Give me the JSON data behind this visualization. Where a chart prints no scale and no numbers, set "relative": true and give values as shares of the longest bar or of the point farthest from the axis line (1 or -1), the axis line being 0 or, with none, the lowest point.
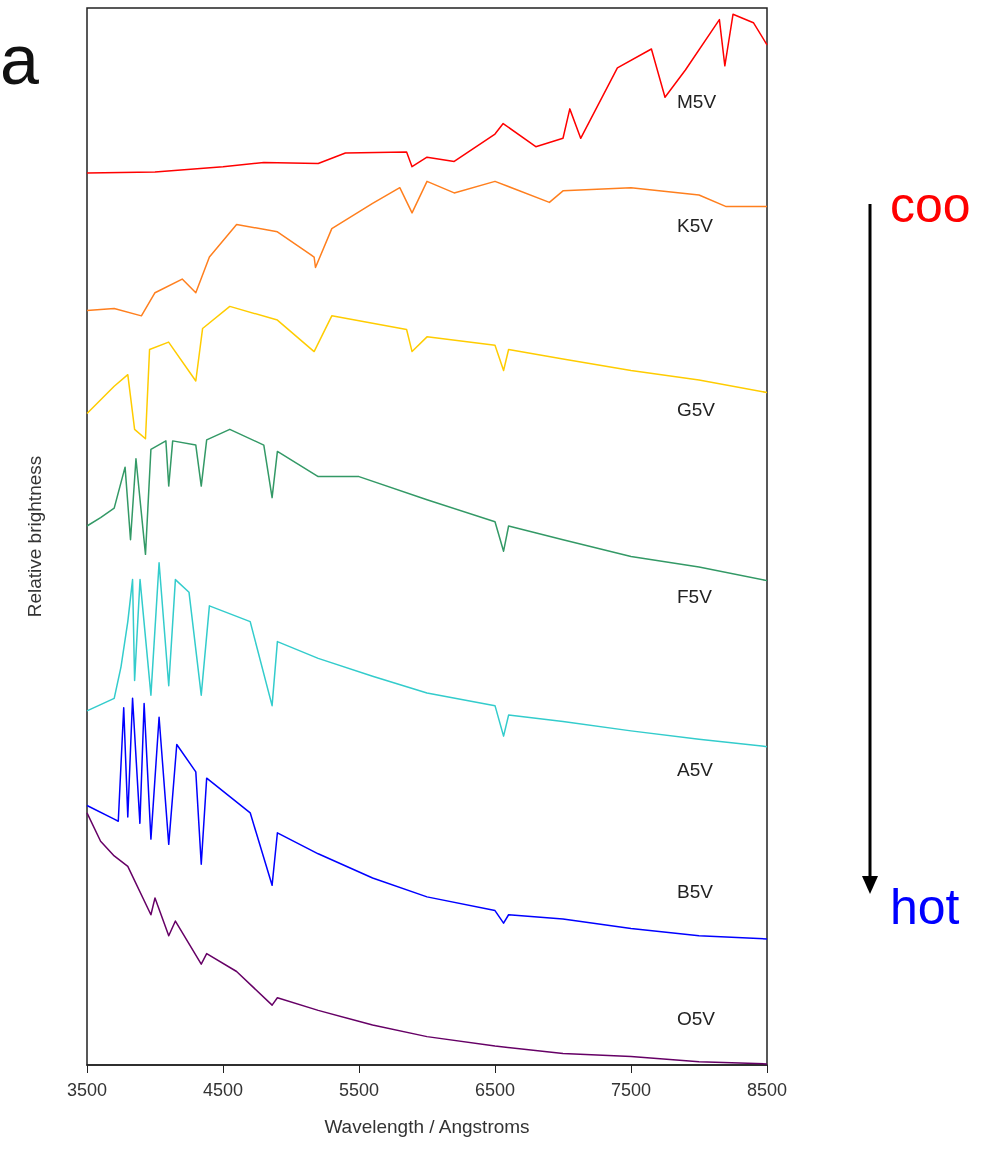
{
  "chart_data": {
    "type": "line",
    "relative": true,
    "xlabel": "Wavelength / Angstroms",
    "ylabel": "Relative brightness",
    "xlim": [
      3500,
      8500
    ],
    "xticks": [
      3500,
      4500,
      5500,
      6500,
      7500,
      8500
    ],
    "grid": false,
    "legend": false,
    "marker": "none",
    "line_style": "solid",
    "annotations": [
      "a",
      "coo",
      "hot"
    ],
    "series": [
      {
        "name": "M5V",
        "color": "#ff0000",
        "x": [
          3500,
          4000,
          4500,
          4800,
          5200,
          5400,
          5850,
          5890,
          6000,
          6200,
          6500,
          6560,
          6800,
          7000,
          7050,
          7130,
          7400,
          7650,
          7750,
          7900,
          8150,
          8190,
          8250,
          8400,
          8500
        ],
        "values": [
          0.849,
          0.85,
          0.855,
          0.859,
          0.858,
          0.868,
          0.869,
          0.855,
          0.864,
          0.86,
          0.886,
          0.896,
          0.874,
          0.882,
          0.91,
          0.882,
          0.949,
          0.967,
          0.921,
          0.947,
          0.995,
          0.951,
          1.0,
          0.992,
          0.971
        ]
      },
      {
        "name": "K5V",
        "color": "#ff7f1e",
        "x": [
          3500,
          3700,
          3900,
          4000,
          4200,
          4300,
          4400,
          4600,
          4900,
          5170,
          5180,
          5300,
          5600,
          5800,
          5890,
          6000,
          6200,
          6500,
          6900,
          7000,
          7500,
          8000,
          8200,
          8500
        ],
        "values": [
          0.718,
          0.72,
          0.713,
          0.735,
          0.748,
          0.735,
          0.769,
          0.8,
          0.793,
          0.769,
          0.759,
          0.796,
          0.82,
          0.835,
          0.811,
          0.841,
          0.83,
          0.841,
          0.821,
          0.832,
          0.835,
          0.828,
          0.817,
          0.817
        ]
      },
      {
        "name": "G5V",
        "color": "#ffcc00",
        "x": [
          3500,
          3700,
          3800,
          3850,
          3930,
          3960,
          4100,
          4300,
          4350,
          4550,
          4900,
          5170,
          5300,
          5850,
          5890,
          6000,
          6500,
          6563,
          6600,
          7000,
          7500,
          8000,
          8500
        ],
        "values": [
          0.62,
          0.646,
          0.657,
          0.605,
          0.596,
          0.681,
          0.688,
          0.651,
          0.701,
          0.722,
          0.709,
          0.679,
          0.713,
          0.7,
          0.679,
          0.693,
          0.685,
          0.661,
          0.681,
          0.672,
          0.661,
          0.652,
          0.64
        ]
      },
      {
        "name": "F5V",
        "color": "#339966",
        "x": [
          3500,
          3600,
          3700,
          3780,
          3820,
          3860,
          3930,
          3970,
          4080,
          4101,
          4130,
          4300,
          4340,
          4380,
          4550,
          4800,
          4861,
          4900,
          5200,
          5500,
          6000,
          6500,
          6563,
          6600,
          7000,
          7500,
          8000,
          8500
        ],
        "values": [
          0.513,
          0.521,
          0.53,
          0.569,
          0.5,
          0.577,
          0.486,
          0.586,
          0.594,
          0.551,
          0.594,
          0.59,
          0.551,
          0.595,
          0.605,
          0.59,
          0.54,
          0.584,
          0.56,
          0.56,
          0.538,
          0.517,
          0.489,
          0.513,
          0.5,
          0.484,
          0.474,
          0.461
        ]
      },
      {
        "name": "A5V",
        "color": "#33cccc",
        "x": [
          3500,
          3700,
          3750,
          3800,
          3835,
          3850,
          3890,
          3970,
          4030,
          4101,
          4150,
          4250,
          4340,
          4400,
          4700,
          4861,
          4900,
          5200,
          5600,
          6000,
          6500,
          6563,
          6600,
          7000,
          7500,
          8000,
          8500
        ],
        "values": [
          0.337,
          0.349,
          0.379,
          0.422,
          0.462,
          0.366,
          0.462,
          0.352,
          0.478,
          0.361,
          0.462,
          0.45,
          0.352,
          0.437,
          0.422,
          0.342,
          0.403,
          0.387,
          0.37,
          0.354,
          0.342,
          0.313,
          0.333,
          0.327,
          0.318,
          0.31,
          0.303
        ]
      },
      {
        "name": "B5V",
        "color": "#0000ff",
        "x": [
          3500,
          3700,
          3730,
          3770,
          3800,
          3835,
          3889,
          3920,
          3970,
          4030,
          4101,
          4160,
          4300,
          4340,
          4380,
          4700,
          4861,
          4900,
          5200,
          5600,
          6000,
          6500,
          6563,
          6600,
          7000,
          7500,
          8000,
          8500
        ],
        "values": [
          0.247,
          0.234,
          0.232,
          0.34,
          0.236,
          0.349,
          0.23,
          0.344,
          0.215,
          0.331,
          0.21,
          0.305,
          0.279,
          0.191,
          0.273,
          0.24,
          0.171,
          0.221,
          0.201,
          0.178,
          0.16,
          0.147,
          0.135,
          0.143,
          0.139,
          0.13,
          0.123,
          0.12
        ]
      },
      {
        "name": "O5V",
        "color": "#660066",
        "x": [
          3500,
          3600,
          3700,
          3800,
          3970,
          4000,
          4101,
          4150,
          4340,
          4380,
          4600,
          4861,
          4900,
          5200,
          5600,
          6000,
          6500,
          7000,
          7500,
          8000,
          8500
        ],
        "values": [
          0.24,
          0.213,
          0.199,
          0.189,
          0.143,
          0.159,
          0.123,
          0.137,
          0.096,
          0.106,
          0.089,
          0.057,
          0.064,
          0.052,
          0.038,
          0.027,
          0.018,
          0.011,
          0.008,
          0.003,
          0.001
        ]
      }
    ]
  }
}
